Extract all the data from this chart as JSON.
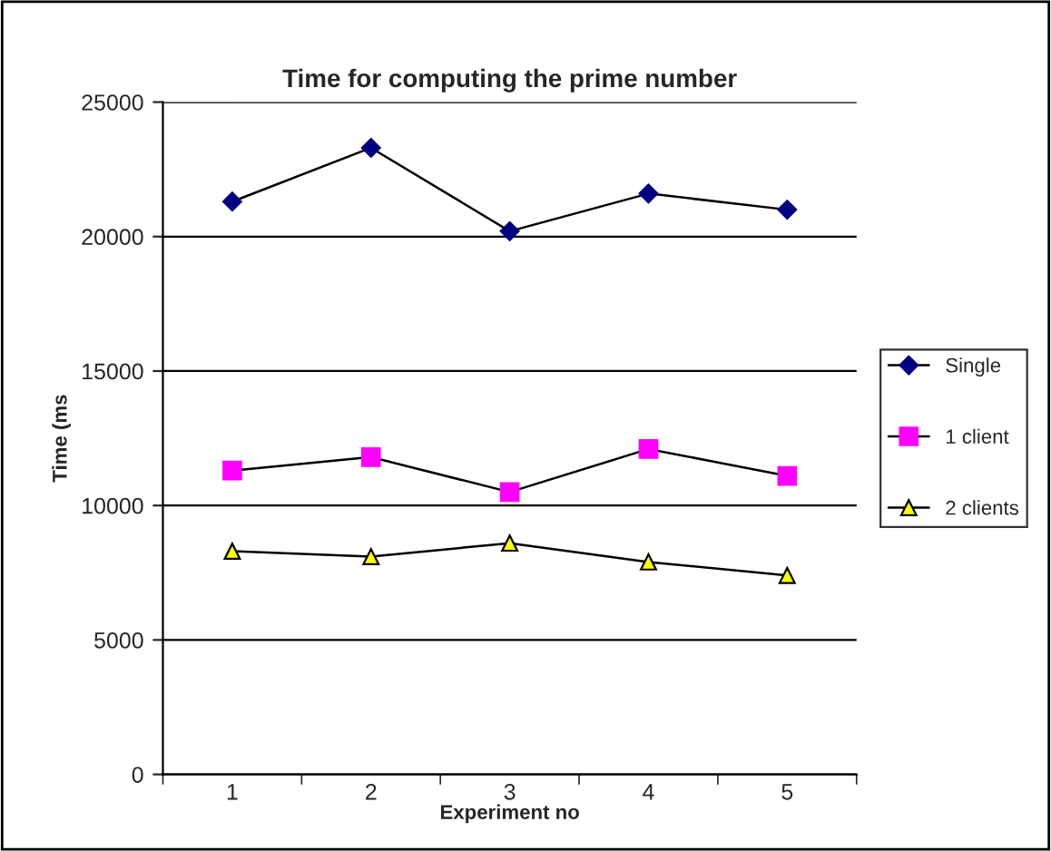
{
  "chart_data": {
    "type": "line",
    "title": "Time for computing the prime number",
    "xlabel": "Experiment no",
    "ylabel": "Time (ms",
    "categories": [
      "1",
      "2",
      "3",
      "4",
      "5"
    ],
    "series": [
      {
        "name": "Single",
        "color": "#000080",
        "marker": "diamond",
        "values": [
          21300,
          23300,
          20200,
          21600,
          21000
        ]
      },
      {
        "name": "1 client",
        "color": "#ff00ff",
        "marker": "square",
        "values": [
          11300,
          11800,
          10500,
          12100,
          11100
        ]
      },
      {
        "name": "2 clients",
        "color": "#ffff00",
        "marker": "triangle",
        "values": [
          8300,
          8100,
          8600,
          7900,
          7400
        ]
      }
    ],
    "ylim": [
      0,
      25000
    ],
    "yticks": [
      0,
      5000,
      10000,
      15000,
      20000,
      25000
    ],
    "grid": "y",
    "legend": "right"
  }
}
